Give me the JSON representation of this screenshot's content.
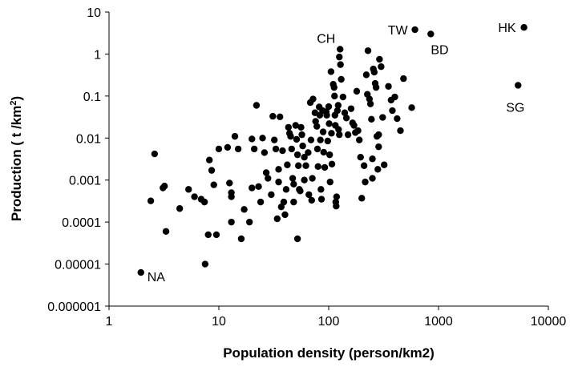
{
  "chart_data": {
    "type": "scatter",
    "xlabel": "Population density (person/km2)",
    "ylabel": "Production ( t /km",
    "ylabel_sup": "2",
    "ylabel_close": ")",
    "xscale": "log",
    "yscale": "log",
    "xlim": [
      1,
      10000
    ],
    "ylim": [
      1e-06,
      10
    ],
    "grid": false,
    "legend": "none",
    "xticks": [
      1,
      10,
      100,
      1000,
      10000
    ],
    "xtick_labels": [
      "1",
      "10",
      "100",
      "1000",
      "10000"
    ],
    "yticks": [
      1e-06,
      1e-05,
      0.0001,
      0.001,
      0.01,
      0.1,
      1,
      10
    ],
    "ytick_labels": [
      "0.000001",
      "0.00001",
      "0.0001",
      "0.001",
      "0.01",
      "0.1",
      "1",
      "10"
    ],
    "marker_color": "#000000",
    "annotations": [
      {
        "label": "TW",
        "x": 610,
        "y": 3.8
      },
      {
        "label": "HK",
        "x": 6000,
        "y": 4.3
      },
      {
        "label": "BD",
        "x": 850,
        "y": 3.0
      },
      {
        "label": "SG",
        "x": 5300,
        "y": 0.18
      },
      {
        "label": "CH",
        "x": 127,
        "y": 1.3
      },
      {
        "label": "NA",
        "x": 1.95,
        "y": 6.3e-06
      }
    ],
    "points": [
      [
        610,
        3.8
      ],
      [
        850,
        3.0
      ],
      [
        6000,
        4.3
      ],
      [
        5300,
        0.18
      ],
      [
        127,
        1.3
      ],
      [
        1.95,
        6.3e-06
      ],
      [
        2.4,
        0.00032
      ],
      [
        2.6,
        0.0042
      ],
      [
        3.1,
        0.00065
      ],
      [
        3.2,
        0.00072
      ],
      [
        3.3,
        6e-05
      ],
      [
        4.4,
        0.00021
      ],
      [
        5.3,
        0.0006
      ],
      [
        6.0,
        0.0004
      ],
      [
        6.9,
        0.00035
      ],
      [
        7.4,
        0.0003
      ],
      [
        7.5,
        1e-05
      ],
      [
        8.0,
        5e-05
      ],
      [
        8.2,
        0.003
      ],
      [
        8.6,
        0.0017
      ],
      [
        9.0,
        0.00077
      ],
      [
        9.5,
        5e-05
      ],
      [
        10,
        0.0055
      ],
      [
        12,
        0.006
      ],
      [
        12.5,
        0.00085
      ],
      [
        13,
        0.0005
      ],
      [
        13,
        0.0004
      ],
      [
        13,
        0.0001
      ],
      [
        14,
        0.011
      ],
      [
        15,
        0.0055
      ],
      [
        16,
        4e-05
      ],
      [
        17,
        0.0002
      ],
      [
        19,
        0.0001
      ],
      [
        20,
        0.00065
      ],
      [
        20,
        0.0095
      ],
      [
        21,
        0.0055
      ],
      [
        22,
        0.06
      ],
      [
        23,
        0.0007
      ],
      [
        24,
        0.0003
      ],
      [
        25,
        0.01
      ],
      [
        26,
        0.0045
      ],
      [
        27,
        0.0015
      ],
      [
        28,
        0.0011
      ],
      [
        30,
        0.00045
      ],
      [
        31,
        0.033
      ],
      [
        32,
        0.009
      ],
      [
        33,
        0.0055
      ],
      [
        34,
        0.00012
      ],
      [
        35,
        0.0018
      ],
      [
        35,
        0.0009
      ],
      [
        36,
        0.032
      ],
      [
        37,
        0.00023
      ],
      [
        38,
        0.005
      ],
      [
        39,
        0.0003
      ],
      [
        40,
        0.00015
      ],
      [
        41,
        0.0006
      ],
      [
        42,
        0.0023
      ],
      [
        43,
        0.018
      ],
      [
        44,
        0.013
      ],
      [
        45,
        0.011
      ],
      [
        46,
        0.0055
      ],
      [
        47,
        0.0011
      ],
      [
        48,
        0.0008
      ],
      [
        48,
        0.0003
      ],
      [
        50,
        0.02
      ],
      [
        51,
        0.0093
      ],
      [
        52,
        0.004
      ],
      [
        52,
        4e-05
      ],
      [
        53,
        0.0022
      ],
      [
        54,
        0.0006
      ],
      [
        55,
        0.00055
      ],
      [
        56,
        0.018
      ],
      [
        57,
        0.012
      ],
      [
        58,
        0.0065
      ],
      [
        60,
        0.0035
      ],
      [
        60,
        0.001
      ],
      [
        62,
        0.0022
      ],
      [
        65,
        0.0045
      ],
      [
        66,
        0.00045
      ],
      [
        68,
        0.07
      ],
      [
        69,
        0.009
      ],
      [
        70,
        0.00033
      ],
      [
        71,
        0.0011
      ],
      [
        72,
        0.085
      ],
      [
        75,
        0.04
      ],
      [
        76,
        0.025
      ],
      [
        78,
        0.019
      ],
      [
        79,
        0.0055
      ],
      [
        80,
        0.0021
      ],
      [
        82,
        0.055
      ],
      [
        83,
        0.035
      ],
      [
        84,
        0.009
      ],
      [
        85,
        0.0006
      ],
      [
        86,
        0.00035
      ],
      [
        88,
        0.045
      ],
      [
        89,
        0.014
      ],
      [
        90,
        0.0046
      ],
      [
        92,
        0.002
      ],
      [
        95,
        0.042
      ],
      [
        96,
        0.035
      ],
      [
        98,
        0.0085
      ],
      [
        100,
        0.056
      ],
      [
        101,
        0.022
      ],
      [
        102,
        0.004
      ],
      [
        103,
        0.0009
      ],
      [
        105,
        0.38
      ],
      [
        106,
        0.013
      ],
      [
        107,
        0.0024
      ],
      [
        110,
        0.19
      ],
      [
        112,
        0.16
      ],
      [
        113,
        0.1
      ],
      [
        114,
        0.035
      ],
      [
        115,
        0.02
      ],
      [
        116,
        0.0003
      ],
      [
        117,
        0.00024
      ],
      [
        118,
        0.0004
      ],
      [
        120,
        0.045
      ],
      [
        122,
        0.06
      ],
      [
        123,
        0.016
      ],
      [
        125,
        0.012
      ],
      [
        125,
        0.85
      ],
      [
        128,
        0.56
      ],
      [
        130,
        0.25
      ],
      [
        135,
        0.095
      ],
      [
        140,
        0.04
      ],
      [
        145,
        0.03
      ],
      [
        150,
        0.012
      ],
      [
        160,
        0.05
      ],
      [
        165,
        0.023
      ],
      [
        170,
        0.02
      ],
      [
        175,
        0.0135
      ],
      [
        180,
        0.13
      ],
      [
        185,
        0.015
      ],
      [
        190,
        0.009
      ],
      [
        195,
        0.0035
      ],
      [
        200,
        0.00037
      ],
      [
        210,
        0.0022
      ],
      [
        215,
        0.0009
      ],
      [
        220,
        0.32
      ],
      [
        225,
        0.11
      ],
      [
        228,
        1.2
      ],
      [
        235,
        0.085
      ],
      [
        240,
        0.065
      ],
      [
        245,
        0.028
      ],
      [
        250,
        0.0032
      ],
      [
        255,
        0.44
      ],
      [
        260,
        0.37
      ],
      [
        265,
        0.2
      ],
      [
        270,
        0.16
      ],
      [
        275,
        0.011
      ],
      [
        280,
        0.0018
      ],
      [
        285,
        0.0062
      ],
      [
        290,
        0.75
      ],
      [
        300,
        0.5
      ],
      [
        310,
        0.031
      ],
      [
        320,
        0.0023
      ],
      [
        350,
        0.17
      ],
      [
        370,
        0.08
      ],
      [
        380,
        0.045
      ],
      [
        400,
        0.095
      ],
      [
        420,
        0.029
      ],
      [
        450,
        0.015
      ],
      [
        480,
        0.26
      ],
      [
        570,
        0.053
      ],
      [
        250,
        0.0011
      ],
      [
        285,
        0.012
      ]
    ]
  }
}
